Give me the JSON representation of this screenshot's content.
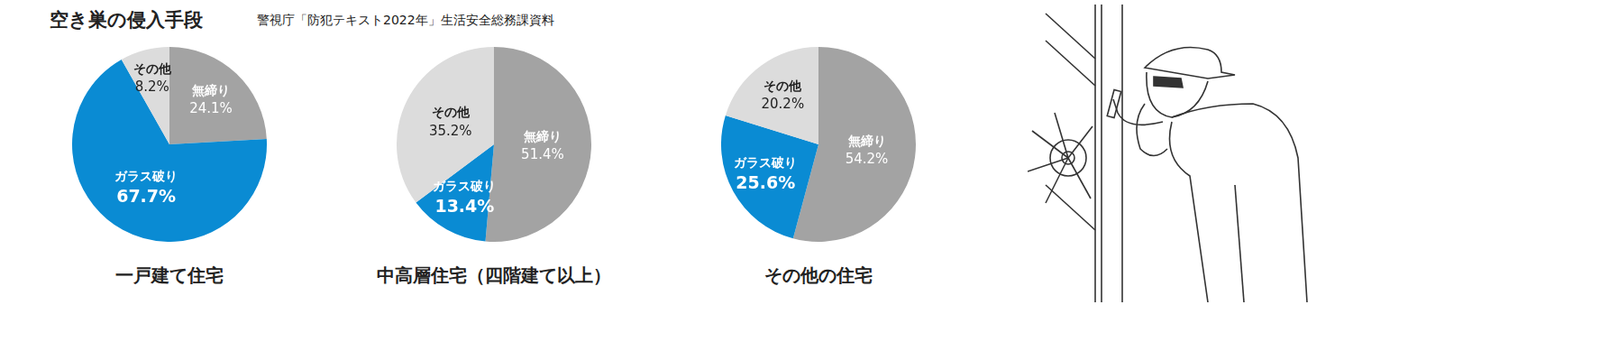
{
  "header": {
    "title": "空き巣の侵入手段",
    "source": "警視庁「防犯テキスト2022年」生活安全総務課資料"
  },
  "chart_data": [
    {
      "type": "pie",
      "title": "一戸建て住宅",
      "categories": [
        "無締り",
        "ガラス破り",
        "その他"
      ],
      "values": [
        24.1,
        67.7,
        8.2
      ],
      "value_labels": [
        "24.1%",
        "67.7%",
        "8.2%"
      ],
      "colors": [
        "#a3a3a3",
        "#0a8bd3",
        "#dcdcdc"
      ],
      "data_labels": true
    },
    {
      "type": "pie",
      "title": "中高層住宅（四階建て以上）",
      "categories": [
        "無締り",
        "ガラス破り",
        "その他"
      ],
      "values": [
        51.4,
        13.4,
        35.2
      ],
      "value_labels": [
        "51.4%",
        "13.4%",
        "35.2%"
      ],
      "colors": [
        "#a3a3a3",
        "#0a8bd3",
        "#dcdcdc"
      ],
      "data_labels": true
    },
    {
      "type": "pie",
      "title": "その他の住宅",
      "categories": [
        "無締り",
        "ガラス破り",
        "その他"
      ],
      "values": [
        54.2,
        25.6,
        20.2
      ],
      "value_labels": [
        "54.2%",
        "25.6%",
        "20.2%"
      ],
      "colors": [
        "#a3a3a3",
        "#0a8bd3",
        "#dcdcdc"
      ],
      "data_labels": true
    }
  ]
}
